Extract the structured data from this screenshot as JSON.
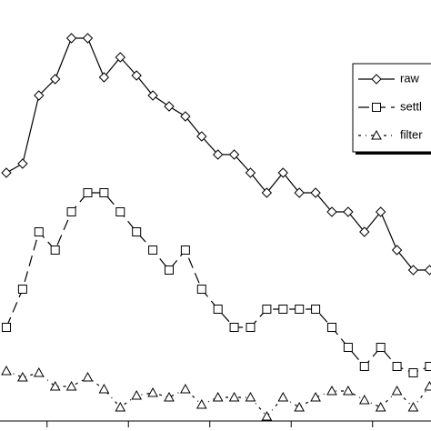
{
  "chart_data": {
    "type": "line",
    "x": [
      0,
      1,
      2,
      3,
      4,
      5,
      6,
      7,
      8,
      9,
      10,
      11,
      12,
      13,
      14,
      15,
      16,
      17,
      18,
      19,
      20,
      21,
      22,
      23,
      24,
      25,
      26
    ],
    "xlim": [
      -0.39,
      26.09
    ],
    "xticks": [
      2.5,
      7.5,
      12.5,
      17.5,
      22.5
    ],
    "ylim": [
      0,
      463
    ],
    "legend": "upper right",
    "series": [
      {
        "name": "raw",
        "color": "#000000",
        "marker": "diamond",
        "dash": "solid",
        "values": [
          273,
          283,
          358,
          376,
          421,
          421,
          378,
          400,
          380,
          358,
          346,
          335,
          313,
          293,
          293,
          273,
          251,
          273,
          251,
          251,
          230,
          230,
          208,
          230,
          188,
          166,
          166
        ]
      },
      {
        "name": "settl",
        "color": "#000000",
        "marker": "square",
        "dash": "dashed",
        "values": [
          103,
          145,
          208,
          188,
          230,
          251,
          251,
          230,
          208,
          188,
          166,
          188,
          145,
          123,
          103,
          103,
          123,
          123,
          123,
          123,
          103,
          81,
          60,
          81,
          60,
          53,
          60
        ]
      },
      {
        "name": "filter",
        "color": "#000000",
        "marker": "triangle",
        "dash": "dashdot",
        "values": [
          55,
          48,
          53,
          38,
          38,
          48,
          35,
          15,
          28,
          31,
          26,
          35,
          18,
          26,
          26,
          26,
          5,
          26,
          15,
          26,
          33,
          33,
          23,
          15,
          33,
          15,
          38
        ]
      }
    ]
  }
}
